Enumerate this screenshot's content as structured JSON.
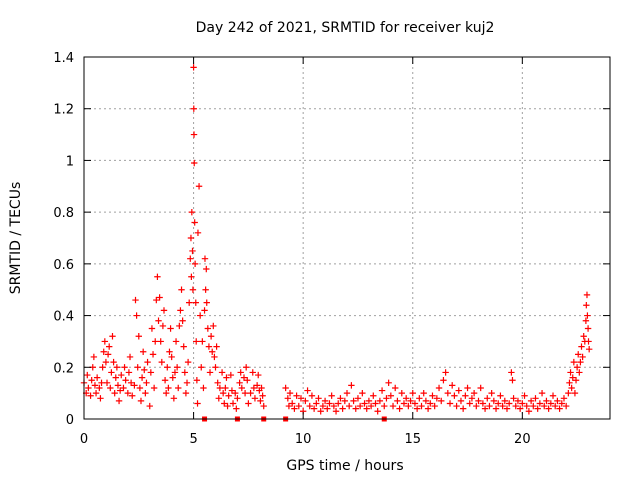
{
  "chart_data": {
    "type": "scatter",
    "title": "Day 242 of 2021, SRMTID for receiver kuj2",
    "xlabel": "GPS time / hours",
    "ylabel": "SRMTID / TECUs",
    "xlim": [
      0,
      24
    ],
    "ylim": [
      0,
      1.4
    ],
    "xticks": [
      0,
      5,
      10,
      15,
      20
    ],
    "xtick_labels": [
      "0",
      "5",
      "10",
      "15",
      "20"
    ],
    "yticks": [
      0,
      0.2,
      0.4,
      0.6,
      0.8,
      1,
      1.2,
      1.4
    ],
    "ytick_labels": [
      "0",
      "0.2",
      "0.4",
      "0.6",
      "0.8",
      "1",
      "1.2",
      "1.4"
    ],
    "grid": true,
    "marker": "+",
    "series": [
      {
        "name": "SRMTID kuj2",
        "color": "#ff0000",
        "points": [
          [
            0.0,
            0.14
          ],
          [
            0.1,
            0.1
          ],
          [
            0.15,
            0.17
          ],
          [
            0.2,
            0.12
          ],
          [
            0.3,
            0.09
          ],
          [
            0.35,
            0.15
          ],
          [
            0.4,
            0.2
          ],
          [
            0.45,
            0.24
          ],
          [
            0.5,
            0.13
          ],
          [
            0.55,
            0.1
          ],
          [
            0.6,
            0.16
          ],
          [
            0.7,
            0.12
          ],
          [
            0.75,
            0.08
          ],
          [
            0.8,
            0.14
          ],
          [
            0.85,
            0.2
          ],
          [
            0.9,
            0.26
          ],
          [
            0.95,
            0.3
          ],
          [
            1.0,
            0.22
          ],
          [
            1.05,
            0.14
          ],
          [
            1.1,
            0.25
          ],
          [
            1.15,
            0.28
          ],
          [
            1.2,
            0.12
          ],
          [
            1.25,
            0.18
          ],
          [
            1.3,
            0.32
          ],
          [
            1.35,
            0.22
          ],
          [
            1.4,
            0.1
          ],
          [
            1.45,
            0.16
          ],
          [
            1.5,
            0.2
          ],
          [
            1.55,
            0.13
          ],
          [
            1.6,
            0.07
          ],
          [
            1.65,
            0.11
          ],
          [
            1.7,
            0.17
          ],
          [
            1.8,
            0.12
          ],
          [
            1.85,
            0.2
          ],
          [
            1.9,
            0.15
          ],
          [
            2.0,
            0.1
          ],
          [
            2.05,
            0.18
          ],
          [
            2.1,
            0.24
          ],
          [
            2.15,
            0.14
          ],
          [
            2.2,
            0.09
          ],
          [
            2.3,
            0.13
          ],
          [
            2.35,
            0.46
          ],
          [
            2.4,
            0.4
          ],
          [
            2.45,
            0.2
          ],
          [
            2.5,
            0.32
          ],
          [
            2.55,
            0.12
          ],
          [
            2.6,
            0.07
          ],
          [
            2.65,
            0.16
          ],
          [
            2.7,
            0.26
          ],
          [
            2.75,
            0.19
          ],
          [
            2.8,
            0.1
          ],
          [
            2.85,
            0.14
          ],
          [
            2.9,
            0.22
          ],
          [
            3.0,
            0.05
          ],
          [
            3.05,
            0.18
          ],
          [
            3.1,
            0.35
          ],
          [
            3.15,
            0.25
          ],
          [
            3.2,
            0.12
          ],
          [
            3.25,
            0.3
          ],
          [
            3.3,
            0.46
          ],
          [
            3.35,
            0.55
          ],
          [
            3.4,
            0.38
          ],
          [
            3.45,
            0.47
          ],
          [
            3.5,
            0.3
          ],
          [
            3.55,
            0.22
          ],
          [
            3.6,
            0.36
          ],
          [
            3.65,
            0.42
          ],
          [
            3.7,
            0.15
          ],
          [
            3.75,
            0.1
          ],
          [
            3.8,
            0.2
          ],
          [
            3.85,
            0.12
          ],
          [
            3.9,
            0.26
          ],
          [
            3.95,
            0.35
          ],
          [
            4.0,
            0.24
          ],
          [
            4.05,
            0.16
          ],
          [
            4.1,
            0.08
          ],
          [
            4.15,
            0.18
          ],
          [
            4.2,
            0.3
          ],
          [
            4.25,
            0.2
          ],
          [
            4.3,
            0.12
          ],
          [
            4.35,
            0.36
          ],
          [
            4.4,
            0.42
          ],
          [
            4.45,
            0.5
          ],
          [
            4.5,
            0.38
          ],
          [
            4.55,
            0.28
          ],
          [
            4.6,
            0.18
          ],
          [
            4.65,
            0.1
          ],
          [
            4.7,
            0.14
          ],
          [
            4.75,
            0.22
          ],
          [
            4.8,
            0.45
          ],
          [
            4.85,
            0.62
          ],
          [
            4.88,
            0.7
          ],
          [
            4.9,
            0.55
          ],
          [
            4.92,
            0.8
          ],
          [
            4.95,
            0.65
          ],
          [
            4.97,
            0.5
          ],
          [
            5.0,
            1.36
          ],
          [
            5.01,
            1.2
          ],
          [
            5.02,
            1.1
          ],
          [
            5.03,
            0.99
          ],
          [
            5.05,
            0.76
          ],
          [
            5.07,
            0.6
          ],
          [
            5.1,
            0.45
          ],
          [
            5.12,
            0.3
          ],
          [
            5.15,
            0.15
          ],
          [
            5.18,
            0.06
          ],
          [
            5.2,
            0.72
          ],
          [
            5.25,
            0.9
          ],
          [
            5.3,
            0.4
          ],
          [
            5.35,
            0.2
          ],
          [
            5.4,
            0.3
          ],
          [
            5.45,
            0.12
          ],
          [
            5.5,
            0.42
          ],
          [
            5.52,
            0.62
          ],
          [
            5.55,
            0.5
          ],
          [
            5.58,
            0.58
          ],
          [
            5.6,
            0.45
          ],
          [
            5.65,
            0.35
          ],
          [
            5.7,
            0.28
          ],
          [
            5.75,
            0.18
          ],
          [
            5.8,
            0.32
          ],
          [
            5.85,
            0.26
          ],
          [
            5.9,
            0.36
          ],
          [
            5.95,
            0.24
          ],
          [
            6.0,
            0.2
          ],
          [
            6.05,
            0.28
          ],
          [
            6.1,
            0.14
          ],
          [
            6.15,
            0.08
          ],
          [
            6.2,
            0.12
          ],
          [
            6.3,
            0.18
          ],
          [
            6.35,
            0.1
          ],
          [
            6.4,
            0.06
          ],
          [
            6.45,
            0.12
          ],
          [
            6.5,
            0.16
          ],
          [
            6.55,
            0.05
          ],
          [
            6.6,
            0.09
          ],
          [
            6.7,
            0.17
          ],
          [
            6.75,
            0.11
          ],
          [
            6.8,
            0.06
          ],
          [
            6.9,
            0.1
          ],
          [
            6.95,
            0.04
          ],
          [
            7.0,
            0.08
          ],
          [
            7.1,
            0.14
          ],
          [
            7.15,
            0.18
          ],
          [
            7.2,
            0.12
          ],
          [
            7.3,
            0.16
          ],
          [
            7.35,
            0.1
          ],
          [
            7.4,
            0.2
          ],
          [
            7.45,
            0.15
          ],
          [
            7.5,
            0.06
          ],
          [
            7.6,
            0.1
          ],
          [
            7.7,
            0.18
          ],
          [
            7.75,
            0.12
          ],
          [
            7.8,
            0.08
          ],
          [
            7.9,
            0.13
          ],
          [
            7.95,
            0.17
          ],
          [
            8.0,
            0.11
          ],
          [
            8.05,
            0.07
          ],
          [
            8.1,
            0.12
          ],
          [
            8.15,
            0.09
          ],
          [
            8.2,
            0.05
          ],
          [
            9.2,
            0.12
          ],
          [
            9.3,
            0.08
          ],
          [
            9.35,
            0.05
          ],
          [
            9.4,
            0.1
          ],
          [
            9.5,
            0.06
          ],
          [
            9.6,
            0.04
          ],
          [
            9.7,
            0.09
          ],
          [
            9.8,
            0.05
          ],
          [
            9.9,
            0.08
          ],
          [
            10.0,
            0.03
          ],
          [
            10.1,
            0.07
          ],
          [
            10.2,
            0.11
          ],
          [
            10.3,
            0.05
          ],
          [
            10.4,
            0.09
          ],
          [
            10.5,
            0.04
          ],
          [
            10.6,
            0.06
          ],
          [
            10.7,
            0.08
          ],
          [
            10.8,
            0.03
          ],
          [
            10.9,
            0.05
          ],
          [
            11.0,
            0.07
          ],
          [
            11.1,
            0.04
          ],
          [
            11.2,
            0.06
          ],
          [
            11.3,
            0.09
          ],
          [
            11.4,
            0.05
          ],
          [
            11.5,
            0.03
          ],
          [
            11.6,
            0.06
          ],
          [
            11.7,
            0.08
          ],
          [
            11.8,
            0.04
          ],
          [
            11.9,
            0.07
          ],
          [
            12.0,
            0.1
          ],
          [
            12.1,
            0.05
          ],
          [
            12.2,
            0.13
          ],
          [
            12.3,
            0.07
          ],
          [
            12.4,
            0.04
          ],
          [
            12.5,
            0.08
          ],
          [
            12.6,
            0.05
          ],
          [
            12.7,
            0.1
          ],
          [
            12.8,
            0.06
          ],
          [
            12.9,
            0.04
          ],
          [
            13.0,
            0.07
          ],
          [
            13.1,
            0.05
          ],
          [
            13.2,
            0.09
          ],
          [
            13.3,
            0.06
          ],
          [
            13.4,
            0.03
          ],
          [
            13.5,
            0.07
          ],
          [
            13.6,
            0.11
          ],
          [
            13.7,
            0.05
          ],
          [
            13.8,
            0.08
          ],
          [
            13.9,
            0.14
          ],
          [
            14.0,
            0.09
          ],
          [
            14.1,
            0.05
          ],
          [
            14.2,
            0.12
          ],
          [
            14.3,
            0.07
          ],
          [
            14.4,
            0.04
          ],
          [
            14.5,
            0.1
          ],
          [
            14.6,
            0.06
          ],
          [
            14.7,
            0.08
          ],
          [
            14.8,
            0.05
          ],
          [
            14.9,
            0.07
          ],
          [
            15.0,
            0.1
          ],
          [
            15.1,
            0.06
          ],
          [
            15.2,
            0.04
          ],
          [
            15.3,
            0.08
          ],
          [
            15.4,
            0.05
          ],
          [
            15.5,
            0.1
          ],
          [
            15.6,
            0.07
          ],
          [
            15.7,
            0.04
          ],
          [
            15.8,
            0.06
          ],
          [
            15.9,
            0.09
          ],
          [
            16.0,
            0.05
          ],
          [
            16.1,
            0.08
          ],
          [
            16.2,
            0.12
          ],
          [
            16.3,
            0.07
          ],
          [
            16.4,
            0.15
          ],
          [
            16.5,
            0.18
          ],
          [
            16.6,
            0.1
          ],
          [
            16.7,
            0.06
          ],
          [
            16.8,
            0.13
          ],
          [
            16.9,
            0.09
          ],
          [
            17.0,
            0.05
          ],
          [
            17.1,
            0.11
          ],
          [
            17.2,
            0.07
          ],
          [
            17.3,
            0.04
          ],
          [
            17.4,
            0.09
          ],
          [
            17.5,
            0.12
          ],
          [
            17.6,
            0.06
          ],
          [
            17.7,
            0.08
          ],
          [
            17.8,
            0.1
          ],
          [
            17.9,
            0.05
          ],
          [
            18.0,
            0.07
          ],
          [
            18.1,
            0.12
          ],
          [
            18.2,
            0.06
          ],
          [
            18.3,
            0.04
          ],
          [
            18.4,
            0.08
          ],
          [
            18.5,
            0.05
          ],
          [
            18.6,
            0.1
          ],
          [
            18.7,
            0.07
          ],
          [
            18.8,
            0.04
          ],
          [
            18.9,
            0.06
          ],
          [
            19.0,
            0.09
          ],
          [
            19.1,
            0.05
          ],
          [
            19.2,
            0.07
          ],
          [
            19.3,
            0.04
          ],
          [
            19.4,
            0.06
          ],
          [
            19.5,
            0.18
          ],
          [
            19.55,
            0.15
          ],
          [
            19.6,
            0.08
          ],
          [
            19.7,
            0.05
          ],
          [
            19.8,
            0.07
          ],
          [
            19.9,
            0.04
          ],
          [
            20.0,
            0.06
          ],
          [
            20.1,
            0.09
          ],
          [
            20.2,
            0.05
          ],
          [
            20.3,
            0.03
          ],
          [
            20.4,
            0.07
          ],
          [
            20.5,
            0.05
          ],
          [
            20.6,
            0.08
          ],
          [
            20.7,
            0.04
          ],
          [
            20.8,
            0.06
          ],
          [
            20.9,
            0.1
          ],
          [
            21.0,
            0.05
          ],
          [
            21.1,
            0.07
          ],
          [
            21.2,
            0.04
          ],
          [
            21.3,
            0.06
          ],
          [
            21.4,
            0.09
          ],
          [
            21.5,
            0.05
          ],
          [
            21.6,
            0.07
          ],
          [
            21.7,
            0.04
          ],
          [
            21.8,
            0.06
          ],
          [
            21.9,
            0.08
          ],
          [
            22.0,
            0.05
          ],
          [
            22.1,
            0.1
          ],
          [
            22.15,
            0.14
          ],
          [
            22.2,
            0.18
          ],
          [
            22.25,
            0.12
          ],
          [
            22.3,
            0.16
          ],
          [
            22.35,
            0.22
          ],
          [
            22.4,
            0.1
          ],
          [
            22.45,
            0.15
          ],
          [
            22.5,
            0.2
          ],
          [
            22.55,
            0.25
          ],
          [
            22.6,
            0.18
          ],
          [
            22.65,
            0.22
          ],
          [
            22.7,
            0.28
          ],
          [
            22.75,
            0.24
          ],
          [
            22.8,
            0.32
          ],
          [
            22.85,
            0.3
          ],
          [
            22.9,
            0.38
          ],
          [
            22.92,
            0.44
          ],
          [
            22.95,
            0.48
          ],
          [
            22.97,
            0.4
          ],
          [
            23.0,
            0.35
          ],
          [
            23.02,
            0.3
          ],
          [
            23.05,
            0.27
          ]
        ]
      }
    ],
    "zero_markers": {
      "color": "#ff0000",
      "x": [
        5.5,
        7.0,
        8.2,
        9.2,
        13.7
      ]
    }
  }
}
